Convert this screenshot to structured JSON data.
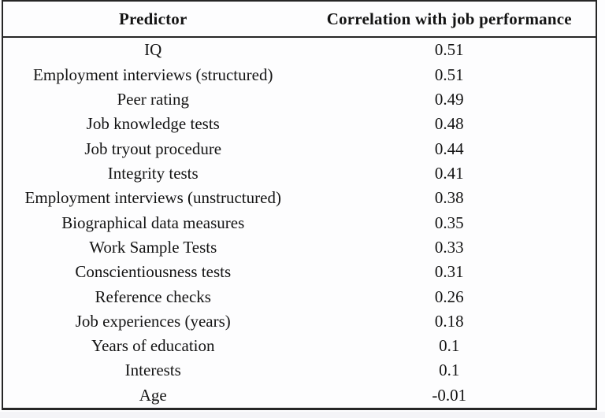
{
  "table": {
    "columns": [
      "Predictor",
      "Correlation with job performance"
    ],
    "rows": [
      {
        "predictor": "IQ",
        "correlation": "0.51"
      },
      {
        "predictor": "Employment interviews (structured)",
        "correlation": "0.51"
      },
      {
        "predictor": "Peer rating",
        "correlation": "0.49"
      },
      {
        "predictor": "Job knowledge tests",
        "correlation": "0.48"
      },
      {
        "predictor": "Job tryout procedure",
        "correlation": "0.44"
      },
      {
        "predictor": "Integrity tests",
        "correlation": "0.41"
      },
      {
        "predictor": "Employment interviews (unstructured)",
        "correlation": "0.38"
      },
      {
        "predictor": "Biographical data measures",
        "correlation": "0.35"
      },
      {
        "predictor": "Work Sample Tests",
        "correlation": "0.33"
      },
      {
        "predictor": "Conscientiousness tests",
        "correlation": "0.31"
      },
      {
        "predictor": "Reference checks",
        "correlation": "0.26"
      },
      {
        "predictor": "Job experiences (years)",
        "correlation": "0.18"
      },
      {
        "predictor": "Years of education",
        "correlation": "0.1"
      },
      {
        "predictor": "Interests",
        "correlation": "0.1"
      },
      {
        "predictor": "Age",
        "correlation": "-0.01"
      }
    ]
  },
  "colors": {
    "border": "#262626",
    "text": "#141414",
    "background": "#fdfdfe"
  }
}
